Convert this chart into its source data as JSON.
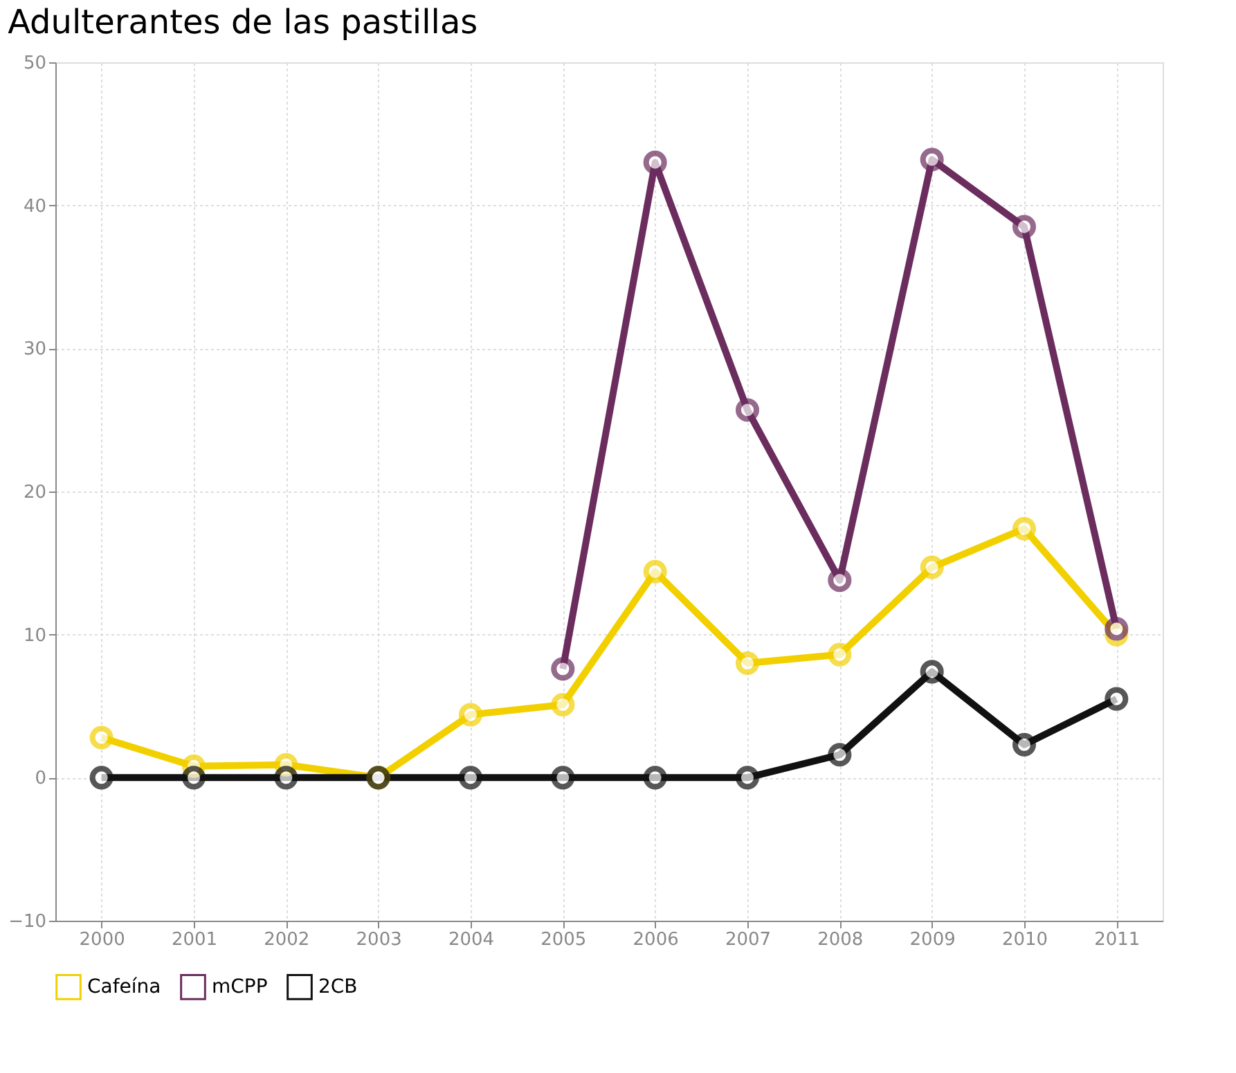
{
  "chart_data": {
    "type": "line",
    "title": "Adulterantes de las pastillas",
    "categories": [
      "2000",
      "2001",
      "2002",
      "2003",
      "2004",
      "2005",
      "2006",
      "2007",
      "2008",
      "2009",
      "2010",
      "2011"
    ],
    "series": [
      {
        "name": "Cafeína",
        "color": "#f2d000",
        "values": [
          2.8,
          0.8,
          0.9,
          0,
          4.4,
          5.1,
          14.4,
          8.0,
          8.6,
          14.7,
          17.4,
          10.0
        ]
      },
      {
        "name": "mCPP",
        "color": "#6b2c5e",
        "values": [
          null,
          null,
          null,
          null,
          null,
          7.6,
          43.0,
          25.7,
          13.8,
          43.2,
          38.5,
          10.4
        ]
      },
      {
        "name": "2CB",
        "color": "#111111",
        "values": [
          0,
          0,
          0,
          0,
          0,
          0,
          0,
          0,
          1.6,
          7.4,
          2.3,
          5.5
        ]
      }
    ],
    "ylim": [
      -10,
      50
    ],
    "yticks": [
      -10,
      0,
      10,
      20,
      30,
      40,
      50
    ],
    "grid": true,
    "legend": "bottom",
    "marker": "circle",
    "line_style": "solid"
  }
}
